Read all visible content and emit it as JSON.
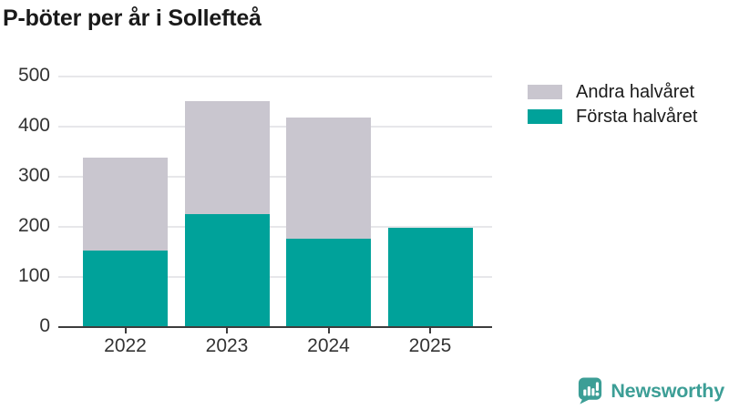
{
  "title": "P-böter per år i Sollefteå",
  "colors": {
    "first_half": "#00a29a",
    "second_half": "#c9c6cf",
    "grid": "#e7e7ea",
    "axis": "#3d3d3d",
    "tick_text": "#333333",
    "title_text": "#1a1a1a",
    "brand": "#3c9e96"
  },
  "chart_data": {
    "type": "bar",
    "stacked": true,
    "title": "P-böter per år i Sollefteå",
    "xlabel": "",
    "ylabel": "",
    "categories": [
      "2022",
      "2023",
      "2024",
      "2025"
    ],
    "series": [
      {
        "name": "Första halvåret",
        "color_key": "first_half",
        "values": [
          153,
          226,
          176,
          199
        ]
      },
      {
        "name": "Andra halvåret",
        "color_key": "second_half",
        "values": [
          185,
          225,
          242,
          0
        ]
      }
    ],
    "ylim": [
      0,
      500
    ],
    "yticks": [
      0,
      100,
      200,
      300,
      400,
      500
    ],
    "grid": true,
    "legend_position": "right",
    "legend_order": [
      "Andra halvåret",
      "Första halvåret"
    ]
  },
  "branding": {
    "logo_text": "Newsworthy",
    "logo_icon": "bar-chart-speech-bubble-icon"
  }
}
